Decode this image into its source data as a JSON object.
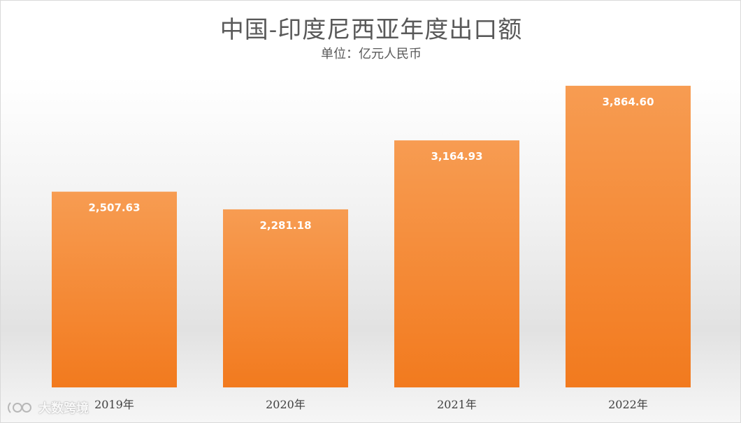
{
  "chart_data": {
    "type": "bar",
    "title": "中国-印度尼西亚年度出口额",
    "subtitle": "单位：亿元人民币",
    "categories": [
      "2019年",
      "2020年",
      "2021年",
      "2022年"
    ],
    "values": [
      2507.63,
      2281.18,
      3164.93,
      3864.6
    ],
    "value_labels": [
      "2,507.63",
      "2,281.18",
      "3,164.93",
      "3,864.60"
    ],
    "ylim": [
      0,
      4400
    ],
    "grid": false,
    "colors": {
      "bar_top": "#f79c52",
      "bar_bottom": "#f27a1e"
    }
  },
  "watermark": {
    "text": "大数跨境"
  }
}
